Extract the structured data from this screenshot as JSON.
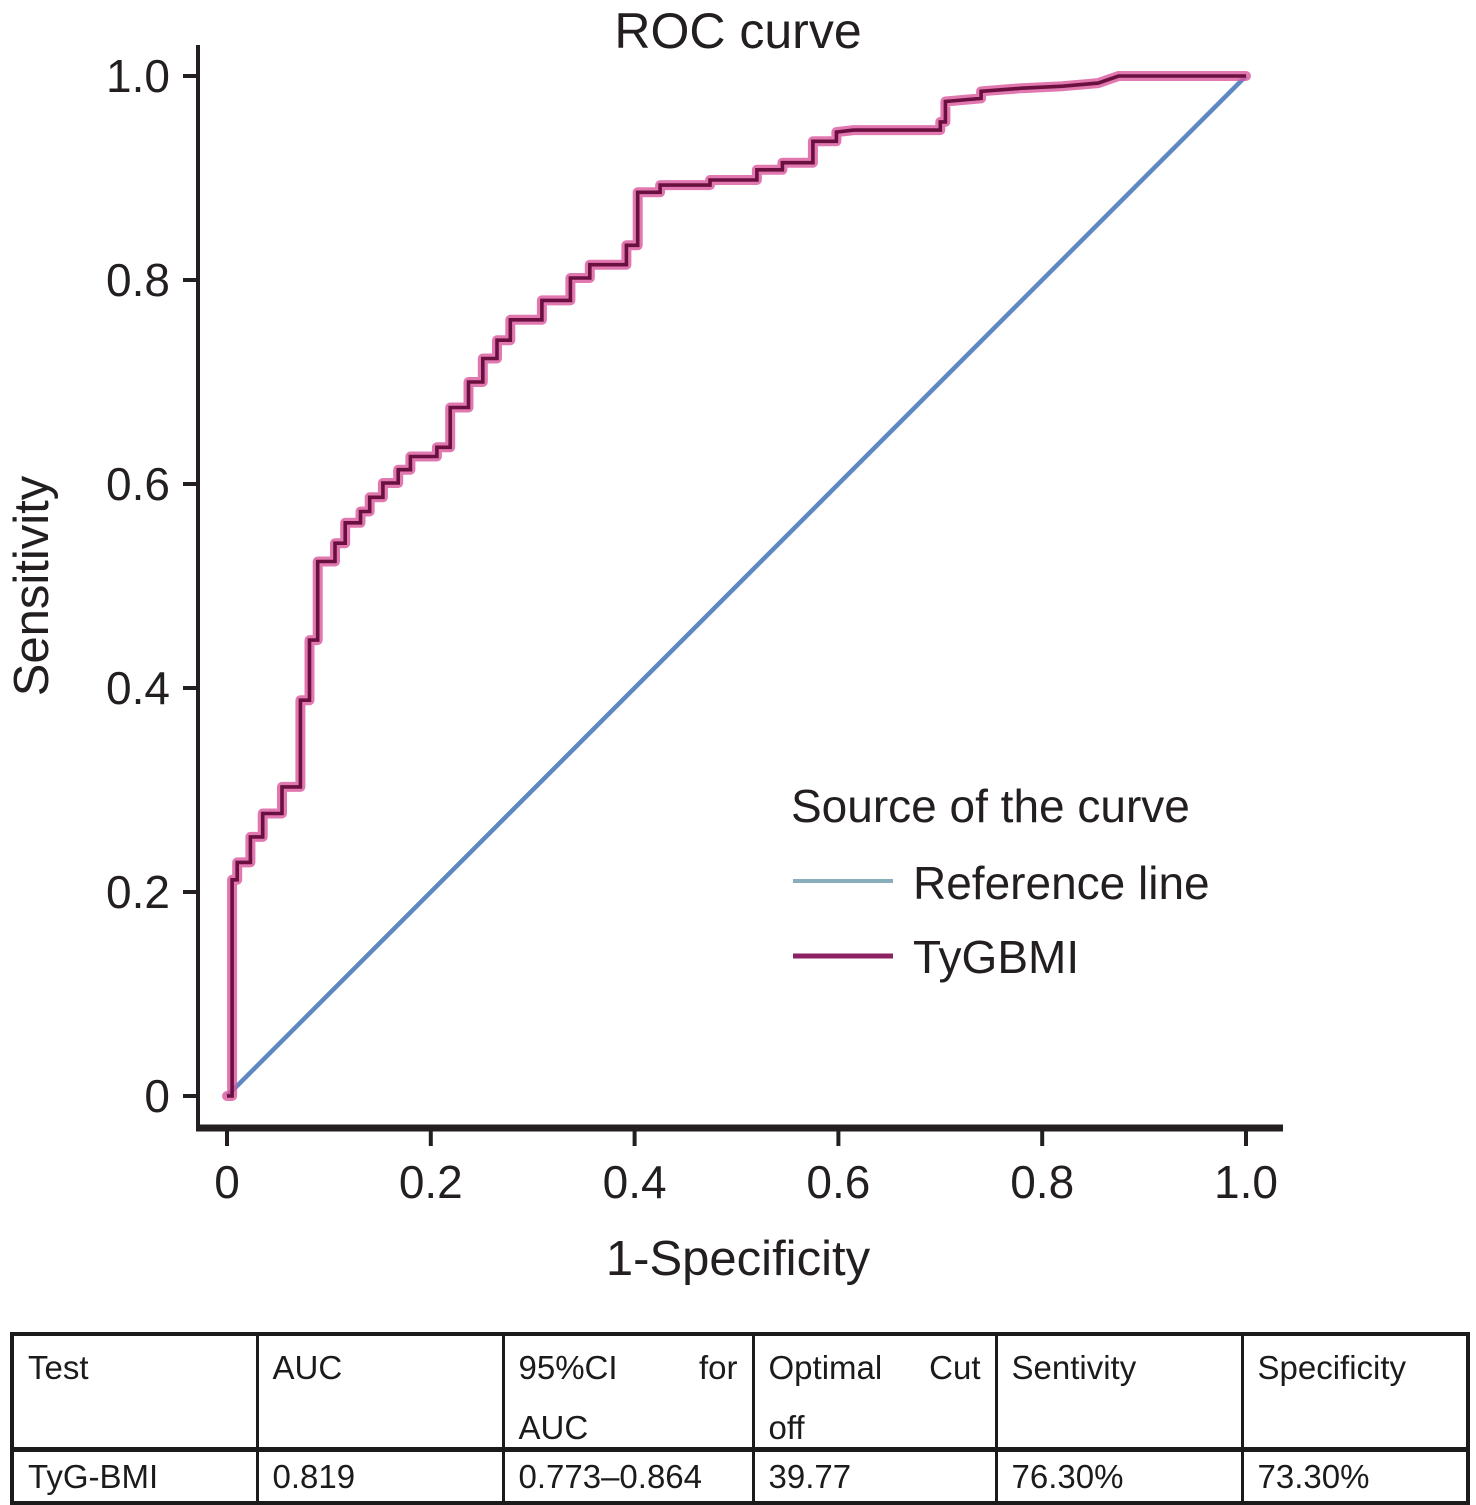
{
  "chart_data": {
    "type": "line",
    "title": "ROC curve",
    "xlabel": "1-Specificity",
    "ylabel": "Sensitivity",
    "xlim": [
      0,
      1
    ],
    "ylim": [
      0,
      1
    ],
    "grid": false,
    "text_color": "#231f20",
    "x_ticks": [
      "0",
      "0.2",
      "0.4",
      "0.6",
      "0.8",
      "1.0"
    ],
    "x_tick_values": [
      0,
      0.2,
      0.4,
      0.6,
      0.8,
      1.0
    ],
    "y_ticks": [
      "0",
      "0.2",
      "0.4",
      "0.6",
      "0.8",
      "1.0"
    ],
    "y_tick_values": [
      0,
      0.2,
      0.4,
      0.6,
      0.8,
      1.0
    ],
    "legend": {
      "title": "Source of the curve",
      "position": "lower-right",
      "entries": [
        {
          "label": "Reference line",
          "swatch_color": "#88aebc"
        },
        {
          "label": "TyGBMI",
          "swatch_color": "#8c2263"
        }
      ]
    },
    "series": [
      {
        "name": "Reference line",
        "style": "diagonal",
        "color": "#5d88c2",
        "points": [
          [
            0,
            0
          ],
          [
            1,
            1
          ]
        ]
      },
      {
        "name": "TyGBMI",
        "style": "step",
        "color": "#6a1040",
        "halo_color": "#d9569c",
        "points": [
          [
            0,
            0
          ],
          [
            0.005,
            0
          ],
          [
            0.005,
            0.212
          ],
          [
            0.01,
            0.212
          ],
          [
            0.01,
            0.229
          ],
          [
            0.023,
            0.229
          ],
          [
            0.023,
            0.254
          ],
          [
            0.035,
            0.254
          ],
          [
            0.035,
            0.277
          ],
          [
            0.054,
            0.277
          ],
          [
            0.054,
            0.303
          ],
          [
            0.072,
            0.303
          ],
          [
            0.072,
            0.388
          ],
          [
            0.081,
            0.388
          ],
          [
            0.081,
            0.447
          ],
          [
            0.089,
            0.447
          ],
          [
            0.089,
            0.524
          ],
          [
            0.106,
            0.524
          ],
          [
            0.106,
            0.542
          ],
          [
            0.116,
            0.542
          ],
          [
            0.116,
            0.562
          ],
          [
            0.131,
            0.562
          ],
          [
            0.131,
            0.573
          ],
          [
            0.14,
            0.573
          ],
          [
            0.14,
            0.587
          ],
          [
            0.153,
            0.587
          ],
          [
            0.153,
            0.601
          ],
          [
            0.168,
            0.601
          ],
          [
            0.168,
            0.614
          ],
          [
            0.18,
            0.614
          ],
          [
            0.18,
            0.627
          ],
          [
            0.206,
            0.627
          ],
          [
            0.206,
            0.636
          ],
          [
            0.219,
            0.636
          ],
          [
            0.219,
            0.675
          ],
          [
            0.237,
            0.675
          ],
          [
            0.237,
            0.7
          ],
          [
            0.251,
            0.7
          ],
          [
            0.251,
            0.723
          ],
          [
            0.265,
            0.723
          ],
          [
            0.265,
            0.741
          ],
          [
            0.278,
            0.741
          ],
          [
            0.278,
            0.761
          ],
          [
            0.309,
            0.761
          ],
          [
            0.309,
            0.78
          ],
          [
            0.337,
            0.78
          ],
          [
            0.337,
            0.802
          ],
          [
            0.356,
            0.802
          ],
          [
            0.356,
            0.815
          ],
          [
            0.392,
            0.815
          ],
          [
            0.392,
            0.834
          ],
          [
            0.403,
            0.834
          ],
          [
            0.403,
            0.886
          ],
          [
            0.425,
            0.886
          ],
          [
            0.425,
            0.893
          ],
          [
            0.474,
            0.893
          ],
          [
            0.474,
            0.898
          ],
          [
            0.52,
            0.898
          ],
          [
            0.52,
            0.908
          ],
          [
            0.545,
            0.908
          ],
          [
            0.545,
            0.915
          ],
          [
            0.575,
            0.915
          ],
          [
            0.575,
            0.936
          ],
          [
            0.598,
            0.936
          ],
          [
            0.598,
            0.945
          ],
          [
            0.615,
            0.947
          ],
          [
            0.7,
            0.947
          ],
          [
            0.7,
            0.955
          ],
          [
            0.705,
            0.955
          ],
          [
            0.705,
            0.975
          ],
          [
            0.74,
            0.978
          ],
          [
            0.74,
            0.985
          ],
          [
            0.78,
            0.988
          ],
          [
            0.82,
            0.99
          ],
          [
            0.855,
            0.993
          ],
          [
            0.875,
            1
          ],
          [
            1,
            1
          ]
        ]
      }
    ]
  },
  "table": {
    "headers": [
      {
        "a": "Test",
        "b": "",
        "c": ""
      },
      {
        "a": "AUC",
        "b": "",
        "c": ""
      },
      {
        "a": "95%CI",
        "b": "for",
        "c": "AUC"
      },
      {
        "a": "Optimal",
        "b": "Cut",
        "c": "off"
      },
      {
        "a": "Sentivity",
        "b": "",
        "c": ""
      },
      {
        "a": "Specificity",
        "b": "",
        "c": ""
      }
    ],
    "row": [
      "TyG-BMI",
      "0.819",
      "0.773–0.864",
      "39.77",
      "76.30%",
      "73.30%"
    ]
  }
}
